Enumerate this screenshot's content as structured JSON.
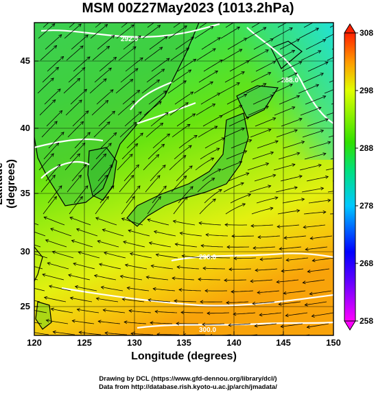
{
  "title": "MSM 00Z27May2023 (1013.2hPa)",
  "x_axis": {
    "label": "Longitude (degrees)",
    "range": [
      120,
      150
    ],
    "ticks": [
      "120",
      "125",
      "130",
      "135",
      "140",
      "145",
      "150"
    ]
  },
  "y_axis": {
    "label": "Latitude (degrees)",
    "range": [
      22.5,
      47.9
    ],
    "ticks": [
      "25",
      "30",
      "35",
      "40",
      "45"
    ]
  },
  "colorbar": {
    "ticks": [
      "258",
      "268",
      "278",
      "288",
      "298",
      "308"
    ],
    "min": 258,
    "max": 308,
    "colors": [
      "#ff00ff",
      "#0000ff",
      "#00c8ff",
      "#00e070",
      "#30e000",
      "#e0ff00",
      "#ff9900",
      "#ff2000"
    ]
  },
  "contour_labels": [
    "292.0",
    "296.0",
    "288.0",
    "300.0"
  ],
  "credits": {
    "line1": "Drawing by DCL (https://www.gfd-dennou.org/library/dcl/)",
    "line2": "Data from http://database.rish.kyoto-u.ac.jp/arch/jmadata/"
  }
}
